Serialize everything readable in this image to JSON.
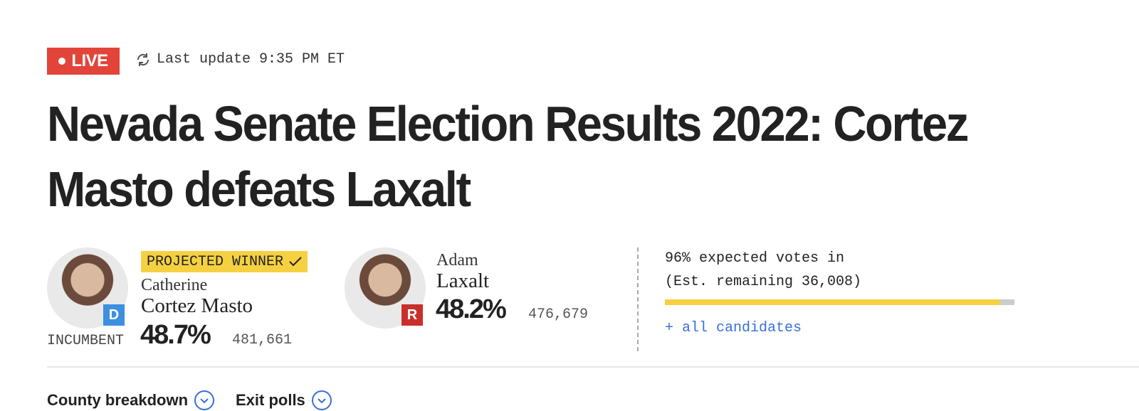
{
  "header": {
    "live": "LIVE",
    "last_update": "Last update 9:35 PM ET"
  },
  "title": "Nevada Senate Election Results 2022: Cortez Masto defeats Laxalt",
  "candidates": [
    {
      "status": "PROJECTED WINNER",
      "first_name": "Catherine",
      "last_name": "Cortez Masto",
      "party": "D",
      "tag": "INCUMBENT",
      "percent": "48.7%",
      "votes": "481,661"
    },
    {
      "first_name": "Adam",
      "last_name": "Laxalt",
      "party": "R",
      "percent": "48.2%",
      "votes": "476,679"
    }
  ],
  "expected": {
    "label": "96% expected votes in",
    "remaining": "(Est. remaining 36,008)",
    "value": 96
  },
  "all_candidates": "+ all candidates",
  "tabs": [
    "County breakdown",
    "Exit polls"
  ]
}
